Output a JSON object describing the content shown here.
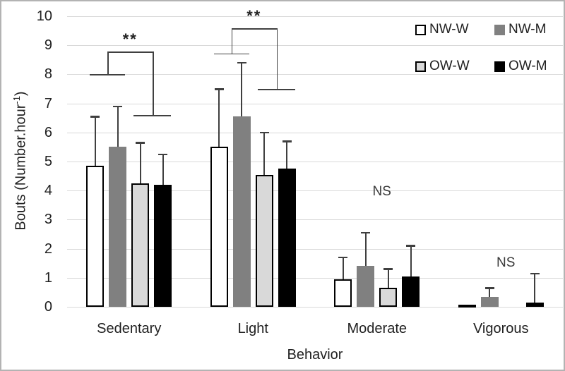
{
  "chart_data": {
    "type": "bar",
    "title": "",
    "xlabel": "Behavior",
    "ylabel": "Bouts (Number.hour-1)",
    "ylabel_parts": {
      "pre": "Bouts (Number.hour",
      "sup": "-1",
      "post": ")"
    },
    "ylim": [
      0,
      10
    ],
    "yticks": [
      0,
      1,
      2,
      3,
      4,
      5,
      6,
      7,
      8,
      9,
      10
    ],
    "grid": true,
    "legend_position": "top-right",
    "categories": [
      "Sedentary",
      "Light",
      "Moderate",
      "Vigorous"
    ],
    "series": [
      {
        "name": "NW-W",
        "fill": "#ffffff",
        "border": "#000000",
        "values": [
          4.85,
          5.5,
          0.95,
          0.08
        ],
        "errors_up": [
          1.7,
          2.0,
          0.75,
          0
        ]
      },
      {
        "name": "NW-M",
        "fill": "#808080",
        "border": null,
        "values": [
          5.5,
          6.55,
          1.4,
          0.35
        ],
        "errors_up": [
          1.4,
          1.85,
          1.15,
          0.3
        ]
      },
      {
        "name": "OW-W",
        "fill": "#d9d9d9",
        "border": "#000000",
        "values": [
          4.25,
          4.55,
          0.65,
          0
        ],
        "errors_up": [
          1.4,
          1.45,
          0.65,
          0
        ]
      },
      {
        "name": "OW-M",
        "fill": "#000000",
        "border": null,
        "values": [
          4.2,
          4.75,
          1.05,
          0.15
        ],
        "errors_up": [
          1.05,
          0.95,
          1.05,
          1.0
        ]
      }
    ],
    "annotations": [
      {
        "type": "bracket",
        "label": "**",
        "category_index": 0,
        "top_y": 8.78,
        "left_line_y": 8.0,
        "right_line_y": 6.6
      },
      {
        "type": "bracket",
        "label": "**",
        "category_index": 1,
        "top_y": 9.58,
        "left_line_y": 8.72,
        "right_line_y": 7.5
      },
      {
        "type": "text",
        "label": "NS",
        "category_index": 2,
        "y": 3.95
      },
      {
        "type": "text",
        "label": "NS",
        "category_index": 3,
        "y": 1.5
      }
    ]
  },
  "colors": {
    "gridline": "#d9d9d9",
    "error_bar": "#3f3f3f",
    "sig_line": "#404040",
    "text": "#212121",
    "frame_border": "#b3b3b3"
  }
}
